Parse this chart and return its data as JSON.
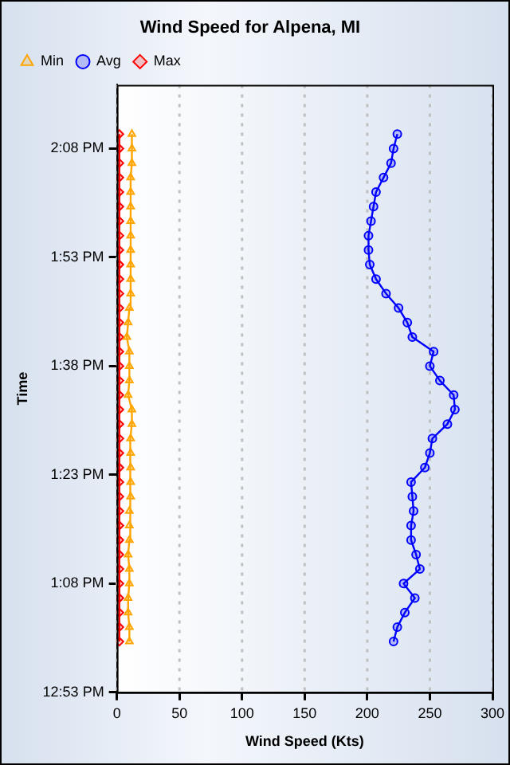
{
  "chart_data": {
    "type": "line",
    "orientation": "horizontal",
    "title": "Wind Speed for Alpena, MI",
    "xlabel": "Wind Speed (Kts)",
    "ylabel": "Time",
    "x": [
      13.0,
      13.0333,
      13.0667,
      13.1,
      13.1333,
      13.1667,
      13.2,
      13.2333,
      13.2667,
      13.3,
      13.3333,
      13.3667,
      13.4,
      13.4333,
      13.4667,
      13.5,
      13.5333,
      13.5667,
      13.6,
      13.6333,
      13.6667,
      13.7,
      13.7333,
      13.7667,
      13.8,
      13.8333,
      13.8667,
      13.9,
      13.9333,
      13.9667,
      14.0,
      14.0333,
      14.0667,
      14.1,
      14.1333,
      14.1667
    ],
    "series": [
      {
        "name": "Min",
        "color": "#ffa500",
        "marker": "triangle",
        "values": [
          10,
          10,
          9,
          9,
          10,
          10,
          9,
          10,
          10,
          10,
          11,
          11,
          11,
          11,
          11,
          12,
          12,
          9,
          10,
          10,
          10,
          8,
          9,
          10,
          11,
          11,
          11,
          11,
          11,
          11,
          11,
          11,
          11,
          12,
          12,
          12
        ]
      },
      {
        "name": "Avg",
        "color": "#0000ff",
        "marker": "circle",
        "values": [
          221,
          224,
          230,
          238,
          229,
          242,
          239,
          235,
          235,
          237,
          236,
          235,
          246,
          250,
          252,
          264,
          270,
          269,
          258,
          250,
          253,
          236,
          232,
          225,
          215,
          207,
          202,
          201,
          201,
          203,
          205,
          207,
          213,
          219,
          221,
          224
        ]
      },
      {
        "name": "Max",
        "color": "#ff0000",
        "marker": "diamond",
        "values": [
          2,
          2,
          2,
          2,
          2,
          2,
          2,
          2,
          2,
          2,
          2,
          2,
          2,
          2,
          2,
          2,
          2,
          2,
          2,
          2,
          2,
          2,
          2,
          2,
          2,
          2,
          2,
          2,
          2,
          2,
          2,
          2,
          2,
          2,
          2,
          2
        ]
      }
    ],
    "xlim": [
      0,
      300
    ],
    "xticks": [
      0,
      50,
      100,
      150,
      200,
      250,
      300
    ],
    "ylim": [
      12.8833,
      14.28
    ],
    "yticks": [
      {
        "value": 12.8833,
        "label": "12:53 PM"
      },
      {
        "value": 13.1333,
        "label": "1:08 PM"
      },
      {
        "value": 13.3833,
        "label": "1:23 PM"
      },
      {
        "value": 13.6333,
        "label": "1:38 PM"
      },
      {
        "value": 13.8833,
        "label": "1:53 PM"
      },
      {
        "value": 14.1333,
        "label": "2:08 PM"
      }
    ],
    "grid": "x",
    "legend": "top left",
    "line_style": "solid"
  }
}
